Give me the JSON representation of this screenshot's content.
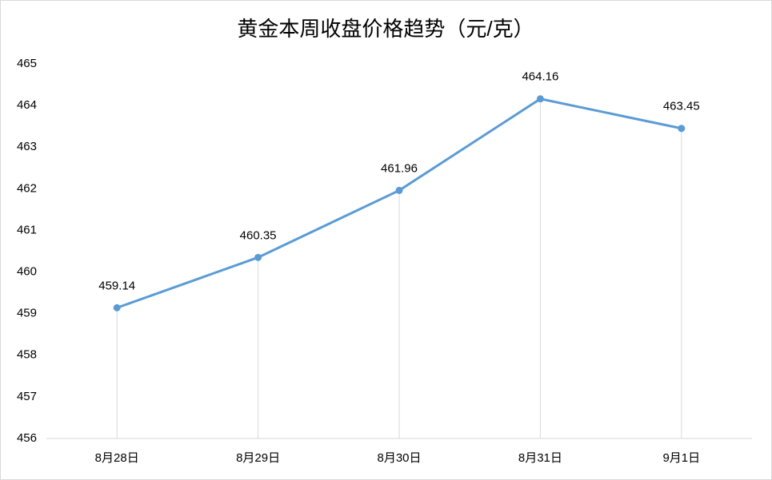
{
  "chart_data": {
    "type": "line",
    "title": "黄金本周收盘价格趋势（元/克）",
    "categories": [
      "8月28日",
      "8月29日",
      "8月30日",
      "8月31日",
      "9月1日"
    ],
    "values": [
      459.14,
      460.35,
      461.96,
      464.16,
      463.45
    ],
    "color": "#5b9bd5",
    "ylim": [
      456,
      465
    ],
    "yticks": [
      456,
      457,
      458,
      459,
      460,
      461,
      462,
      463,
      464,
      465
    ],
    "grid": false,
    "drop_lines": true
  }
}
